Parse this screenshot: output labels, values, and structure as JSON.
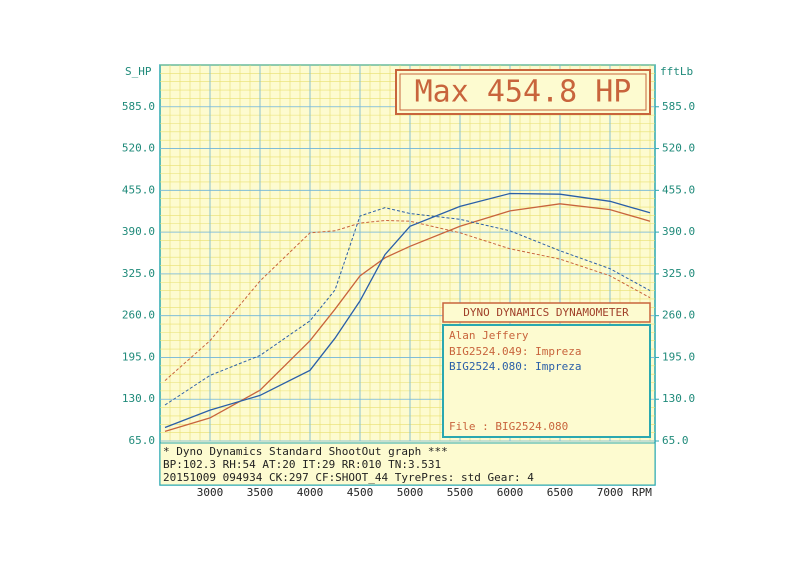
{
  "chart_data": {
    "type": "line",
    "y_label": "S_HP",
    "y2_label": "fftLb",
    "x_unit": "RPM",
    "max_label": "Max 454.8 HP",
    "legend_title": "DYNO DYNAMICS DYNAMOMETER",
    "operator": "Alan Jeffery",
    "file_label": "File    : BIG2524.080",
    "footer": [
      "* Dyno Dynamics Standard ShootOut graph ***",
      "BP:102.3 RH:54 AT:20 IT:29   RR:010 TN:3.531",
      "20151009 094934 CK:297 CF:SHOOT_44 TyrePres: std      Gear: 4"
    ],
    "x": [
      2550,
      3000,
      3500,
      4000,
      4250,
      4500,
      4750,
      5000,
      5500,
      6000,
      6500,
      7000,
      7400
    ],
    "xlim": [
      2500,
      7450
    ],
    "xticks": [
      3000,
      3500,
      4000,
      4500,
      5000,
      5500,
      6000,
      6500,
      7000
    ],
    "ylim": [
      65,
      650
    ],
    "yticks": [
      {
        "value": 65,
        "label": "65.0"
      },
      {
        "value": 130,
        "label": "130.0"
      },
      {
        "value": 195,
        "label": "195.0"
      },
      {
        "value": 260,
        "label": "260.0"
      },
      {
        "value": 325,
        "label": "325.0"
      },
      {
        "value": 390,
        "label": "390.0"
      },
      {
        "value": 455,
        "label": "455.0"
      },
      {
        "value": 520,
        "label": "520.0"
      },
      {
        "value": 585,
        "label": "585.0"
      }
    ],
    "y2lim": [
      65,
      650
    ],
    "y2ticks": [
      {
        "value": 65,
        "label": "65.0"
      },
      {
        "value": 130,
        "label": "130.0"
      },
      {
        "value": 195,
        "label": "195.0"
      },
      {
        "value": 260,
        "label": "260.0"
      },
      {
        "value": 325,
        "label": "325.0"
      },
      {
        "value": 390,
        "label": "390.0"
      },
      {
        "value": 455,
        "label": "455.0"
      },
      {
        "value": 520,
        "label": "520.0"
      },
      {
        "value": 585,
        "label": "585.0"
      }
    ],
    "grid": true,
    "series": [
      {
        "name": "BIG2524.049: Impreza",
        "color": "#c8643c",
        "power": [
          80,
          101,
          144,
          221,
          270,
          322,
          350,
          368,
          399,
          423,
          434,
          425,
          407
        ],
        "torque": [
          159,
          221,
          314,
          389,
          392,
          404,
          408,
          407,
          389,
          364,
          348,
          322,
          288
        ]
      },
      {
        "name": "BIG2524.080: Impreza",
        "color": "#2a5fa8",
        "power": [
          86,
          113,
          136,
          175,
          225,
          283,
          355,
          399,
          430,
          450,
          449,
          438,
          420
        ],
        "torque": [
          121,
          167,
          198,
          252,
          300,
          415,
          428,
          419,
          410,
          392,
          361,
          333,
          299
        ]
      }
    ]
  }
}
